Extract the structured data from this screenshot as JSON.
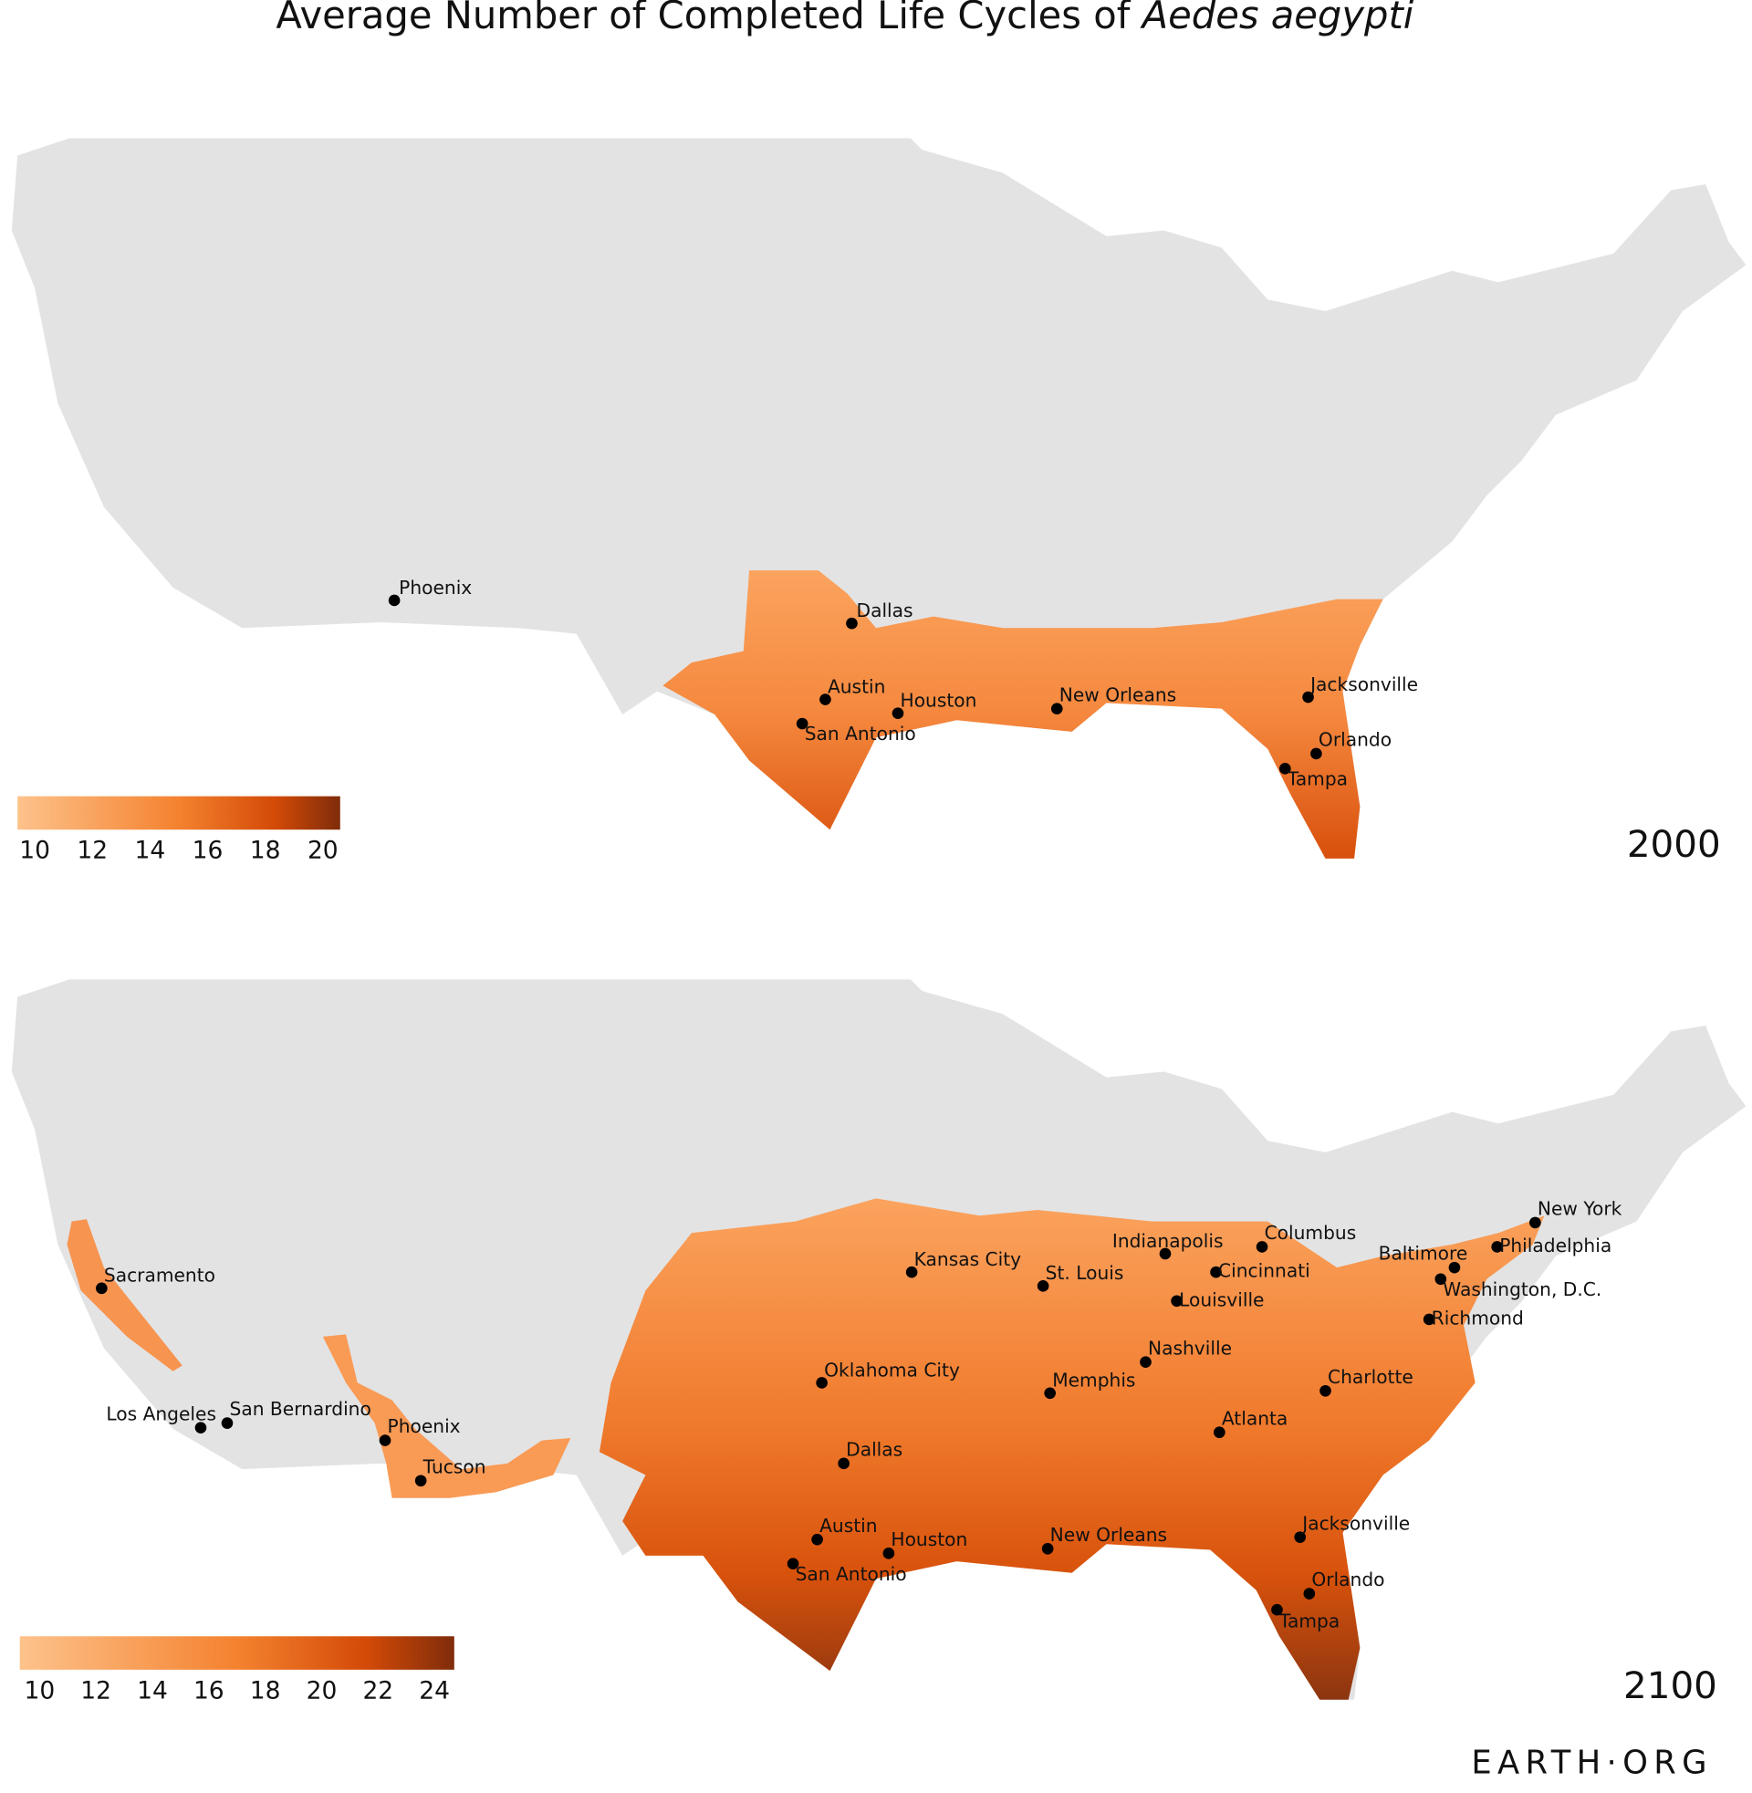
{
  "title": "Average Number of Completed Life Cycles of",
  "title_italic": "Aedes aegypti",
  "maps": [
    {
      "year": "2000",
      "colorbar": {
        "range": [
          9.4,
          20.6
        ],
        "ticks": [
          10,
          12,
          14,
          16,
          18,
          20
        ]
      },
      "cities": [
        "Phoenix",
        "Dallas",
        "Austin",
        "Houston",
        "San Antonio",
        "New Orleans",
        "Jacksonville",
        "Orlando",
        "Tampa"
      ]
    },
    {
      "year": "2100",
      "colorbar": {
        "range": [
          9.3,
          24.7
        ],
        "ticks": [
          10,
          12,
          14,
          16,
          18,
          20,
          22,
          24
        ]
      },
      "cities": [
        "Sacramento",
        "Los Angeles",
        "San Bernardino",
        "Phoenix",
        "Tucson",
        "Kansas City",
        "St. Louis",
        "Indianapolis",
        "Columbus",
        "Cincinnati",
        "Louisville",
        "Oklahoma City",
        "Memphis",
        "Nashville",
        "Atlanta",
        "Charlotte",
        "Dallas",
        "Austin",
        "Houston",
        "San Antonio",
        "New Orleans",
        "Jacksonville",
        "Orlando",
        "Tampa",
        "New York",
        "Philadelphia",
        "Baltimore",
        "Washington, D.C.",
        "Richmond"
      ]
    }
  ],
  "footer": "EARTH·ORG"
}
